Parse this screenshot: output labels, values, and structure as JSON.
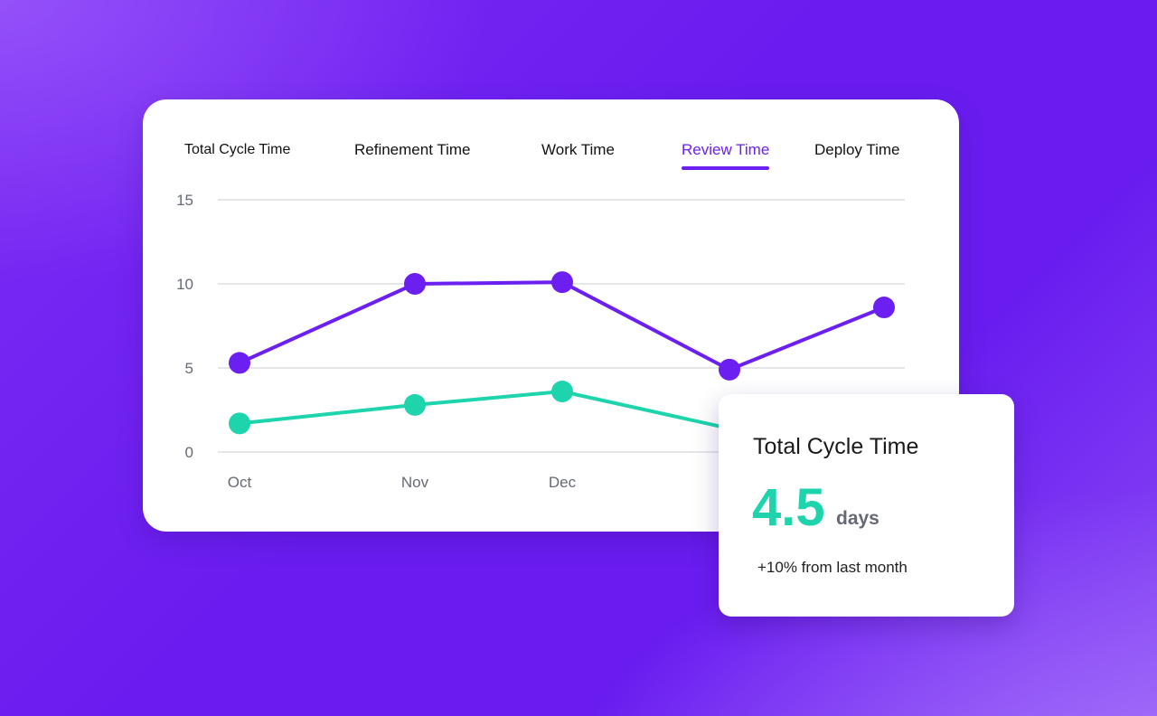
{
  "tabs": [
    {
      "label": "Total Cycle Time",
      "active": false
    },
    {
      "label": "Refinement Time",
      "active": false
    },
    {
      "label": "Work Time",
      "active": false
    },
    {
      "label": "Review Time",
      "active": true
    },
    {
      "label": "Deploy Time",
      "active": false
    }
  ],
  "colors": {
    "accent": "#6b1ff0",
    "series_purple": "#6b1ff0",
    "series_teal": "#1dd4ad",
    "background": "#6a1cf0"
  },
  "chart_data": {
    "type": "line",
    "categories": [
      "Oct",
      "Nov",
      "Dec",
      "",
      ""
    ],
    "y_ticks": [
      "15",
      "10",
      "5",
      "0"
    ],
    "ylim": [
      0,
      15
    ],
    "grid": true,
    "series": [
      {
        "values": [
          5.3,
          10.0,
          10.1,
          4.9,
          8.6
        ],
        "color": "#6b1ff0"
      },
      {
        "values": [
          1.7,
          2.8,
          3.6,
          1.4,
          null
        ],
        "color": "#1dd4ad"
      }
    ]
  },
  "summary": {
    "title": "Total Cycle Time",
    "value": "4.5",
    "unit": "days",
    "change": "+10% from last month"
  }
}
